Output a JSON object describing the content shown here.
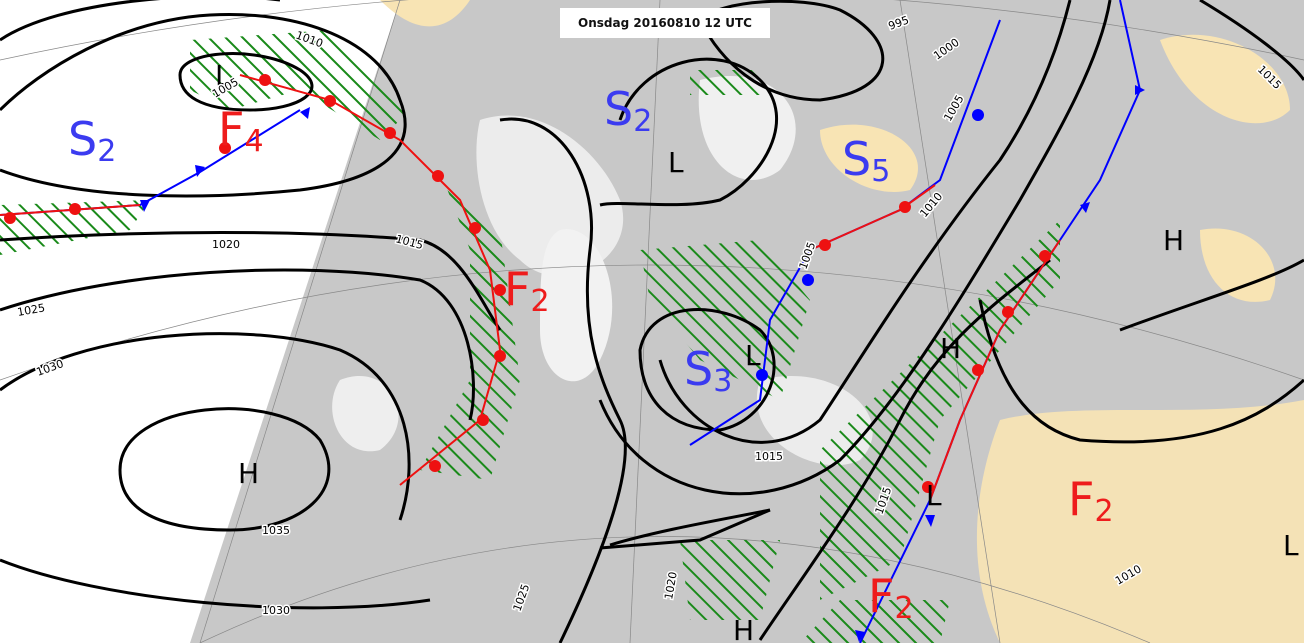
{
  "header": {
    "title": "Onsdag 20160810 12 UTC"
  },
  "fronts": [
    {
      "letter": "S",
      "index": "2"
    },
    {
      "letter": "F",
      "index": "4"
    },
    {
      "letter": "S",
      "index": "2"
    },
    {
      "letter": "S",
      "index": "5"
    },
    {
      "letter": "F",
      "index": "2"
    },
    {
      "letter": "S",
      "index": "3"
    },
    {
      "letter": "F",
      "index": "2"
    },
    {
      "letter": "F",
      "index": "2"
    }
  ],
  "centers": [
    "L",
    "L",
    "L",
    "H",
    "H",
    "H",
    "L",
    "L",
    "H"
  ],
  "isobars": [
    1010,
    1005,
    995,
    1000,
    1005,
    1010,
    1015,
    1020,
    1015,
    1025,
    1030,
    1035,
    1030,
    1015,
    1015,
    1020,
    1025,
    1010,
    1005
  ]
}
